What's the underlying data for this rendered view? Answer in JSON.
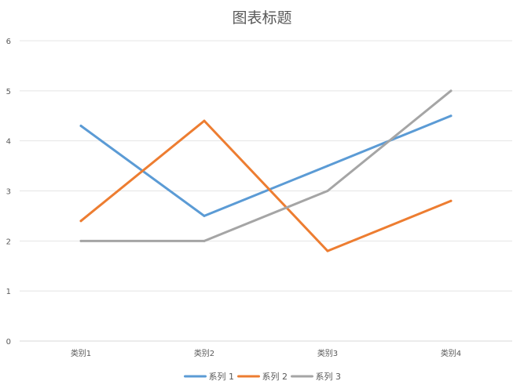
{
  "chart_data": {
    "type": "line",
    "title": "图表标题",
    "categories": [
      "类别1",
      "类别2",
      "类别3",
      "类别4"
    ],
    "series": [
      {
        "name": "系列 1",
        "values": [
          4.3,
          2.5,
          3.5,
          4.5
        ],
        "color": "#5B9BD5"
      },
      {
        "name": "系列 2",
        "values": [
          2.4,
          4.4,
          1.8,
          2.8
        ],
        "color": "#ED7D31"
      },
      {
        "name": "系列 3",
        "values": [
          2.0,
          2.0,
          3.0,
          5.0
        ],
        "color": "#A5A5A5"
      }
    ],
    "ylim": [
      0,
      6
    ],
    "yticks": [
      0,
      1,
      2,
      3,
      4,
      5,
      6
    ],
    "grid": true,
    "legend": "bottom"
  }
}
